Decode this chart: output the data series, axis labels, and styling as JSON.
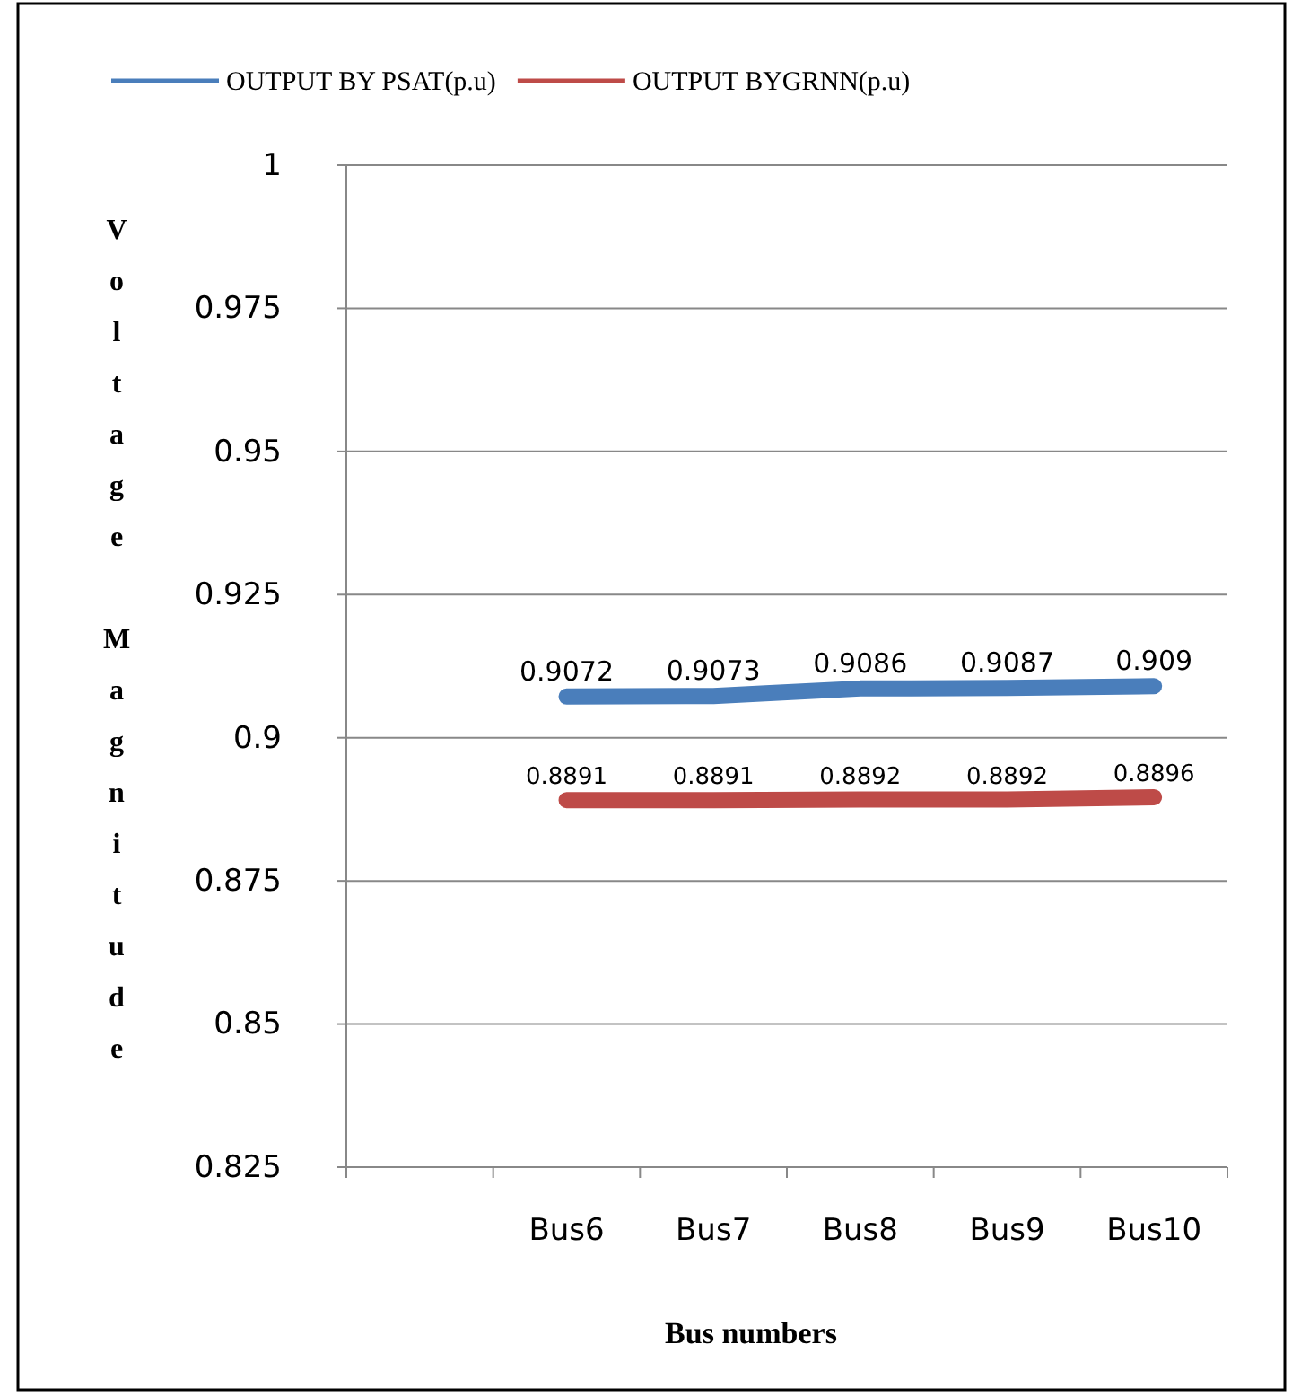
{
  "chart_data": {
    "type": "line",
    "categories": [
      null,
      "Bus6",
      "Bus7",
      "Bus8",
      "Bus9",
      "Bus10"
    ],
    "series": [
      {
        "name": "OUTPUT BY PSAT(p.u)",
        "color": "#4a7ebb",
        "values": [
          null,
          0.9072,
          0.9073,
          0.9086,
          0.9087,
          0.909
        ]
      },
      {
        "name": "OUTPUT BYGRNN(p.u)",
        "color": "#be4b48",
        "values": [
          null,
          0.8891,
          0.8891,
          0.8892,
          0.8892,
          0.8896
        ]
      }
    ],
    "xlabel": "Bus numbers",
    "ylabel": "Voltage Magnitude",
    "ylim": [
      0.825,
      1
    ],
    "yticks": [
      0.825,
      0.85,
      0.875,
      0.9,
      0.925,
      0.95,
      0.975,
      1
    ],
    "grid": "y",
    "legend": "top",
    "data_labels": true,
    "marker": "none",
    "line_style": "solid"
  }
}
